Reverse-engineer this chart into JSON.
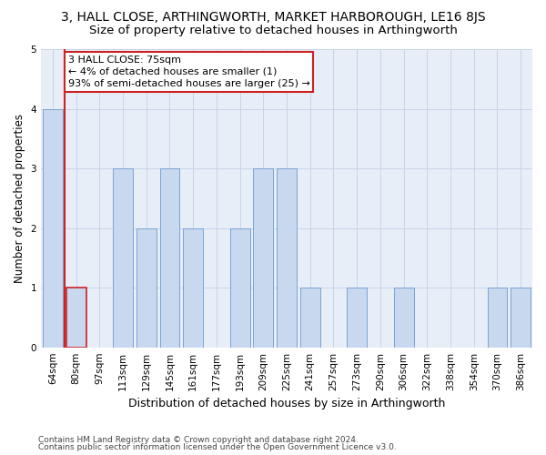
{
  "title": "3, HALL CLOSE, ARTHINGWORTH, MARKET HARBOROUGH, LE16 8JS",
  "subtitle": "Size of property relative to detached houses in Arthingworth",
  "xlabel": "Distribution of detached houses by size in Arthingworth",
  "ylabel": "Number of detached properties",
  "categories": [
    "64sqm",
    "80sqm",
    "97sqm",
    "113sqm",
    "129sqm",
    "145sqm",
    "161sqm",
    "177sqm",
    "193sqm",
    "209sqm",
    "225sqm",
    "241sqm",
    "257sqm",
    "273sqm",
    "290sqm",
    "306sqm",
    "322sqm",
    "338sqm",
    "354sqm",
    "370sqm",
    "386sqm"
  ],
  "values": [
    4,
    1,
    0,
    3,
    2,
    3,
    2,
    0,
    2,
    3,
    3,
    1,
    0,
    1,
    0,
    1,
    0,
    0,
    0,
    1,
    1
  ],
  "bar_color": "#c8d9ef",
  "bar_edge_color": "#7aa3d4",
  "highlight_bar_index": 1,
  "highlight_edge_color": "#cc2222",
  "annotation_text": "3 HALL CLOSE: 75sqm\n← 4% of detached houses are smaller (1)\n93% of semi-detached houses are larger (25) →",
  "annotation_box_color": "white",
  "annotation_box_edge_color": "#cc2222",
  "vline_x": 1.5,
  "ylim": [
    0,
    5
  ],
  "yticks": [
    0,
    1,
    2,
    3,
    4,
    5
  ],
  "grid_color": "#c8d4e8",
  "background_color": "#e8eef8",
  "footer_line1": "Contains HM Land Registry data © Crown copyright and database right 2024.",
  "footer_line2": "Contains public sector information licensed under the Open Government Licence v3.0.",
  "title_fontsize": 10,
  "subtitle_fontsize": 9.5,
  "xlabel_fontsize": 9,
  "ylabel_fontsize": 8.5,
  "tick_fontsize": 7.5,
  "annotation_fontsize": 8,
  "footer_fontsize": 6.5
}
